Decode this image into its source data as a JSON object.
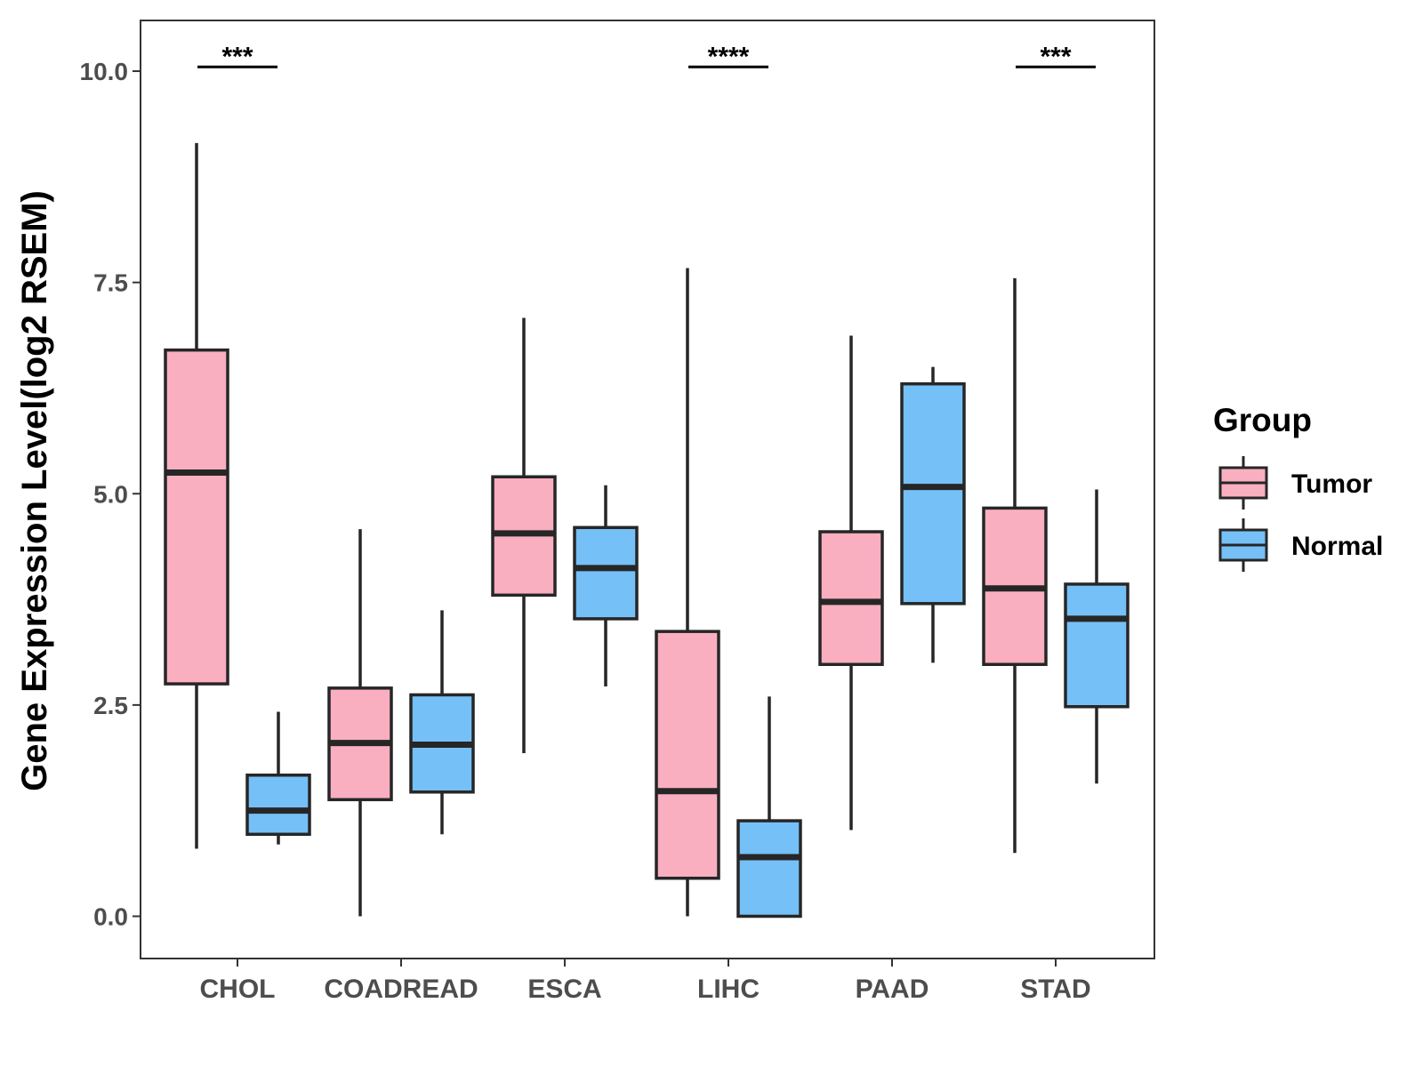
{
  "chart_data": {
    "type": "boxplot",
    "title": "",
    "xlabel": "",
    "ylabel": "Gene Expression Level(log2 RSEM)",
    "ylim": [
      -0.5,
      10.6
    ],
    "yticks": [
      0.0,
      2.5,
      5.0,
      7.5,
      10.0
    ],
    "ytick_labels": [
      "0.0",
      "2.5",
      "5.0",
      "7.5",
      "10.0"
    ],
    "categories": [
      "CHOL",
      "COADREAD",
      "ESCA",
      "LIHC",
      "PAAD",
      "STAD"
    ],
    "legend": {
      "title": "Group",
      "position": "right",
      "entries": [
        {
          "name": "Tumor",
          "color": "#f9afc0"
        },
        {
          "name": "Normal",
          "color": "#75c0f6"
        }
      ]
    },
    "series": [
      {
        "name": "Tumor",
        "color": "#f9afc0",
        "boxes": [
          {
            "category": "CHOL",
            "min": 0.8,
            "q1": 2.75,
            "median": 5.25,
            "q3": 6.7,
            "max": 9.15
          },
          {
            "category": "COADREAD",
            "min": 0.0,
            "q1": 1.38,
            "median": 2.05,
            "q3": 2.7,
            "max": 4.58
          },
          {
            "category": "ESCA",
            "min": 1.93,
            "q1": 3.8,
            "median": 4.53,
            "q3": 5.2,
            "max": 7.08
          },
          {
            "category": "LIHC",
            "min": 0.0,
            "q1": 0.45,
            "median": 1.48,
            "q3": 3.37,
            "max": 7.67
          },
          {
            "category": "PAAD",
            "min": 1.02,
            "q1": 2.98,
            "median": 3.72,
            "q3": 4.55,
            "max": 6.87
          },
          {
            "category": "STAD",
            "min": 0.75,
            "q1": 2.98,
            "median": 3.88,
            "q3": 4.83,
            "max": 7.55
          }
        ]
      },
      {
        "name": "Normal",
        "color": "#75c0f6",
        "boxes": [
          {
            "category": "CHOL",
            "min": 0.85,
            "q1": 0.97,
            "median": 1.25,
            "q3": 1.67,
            "max": 2.42
          },
          {
            "category": "COADREAD",
            "min": 0.97,
            "q1": 1.47,
            "median": 2.03,
            "q3": 2.62,
            "max": 3.62
          },
          {
            "category": "ESCA",
            "min": 2.72,
            "q1": 3.52,
            "median": 4.12,
            "q3": 4.6,
            "max": 5.1
          },
          {
            "category": "LIHC",
            "min": 0.0,
            "q1": 0.0,
            "median": 0.7,
            "q3": 1.13,
            "max": 2.6
          },
          {
            "category": "PAAD",
            "min": 3.0,
            "q1": 3.7,
            "median": 5.08,
            "q3": 6.3,
            "max": 6.5
          },
          {
            "category": "STAD",
            "min": 1.57,
            "q1": 2.48,
            "median": 3.52,
            "q3": 3.93,
            "max": 5.05
          }
        ]
      }
    ],
    "significance": [
      {
        "category": "CHOL",
        "label": "***",
        "y": 10.05
      },
      {
        "category": "LIHC",
        "label": "****",
        "y": 10.05
      },
      {
        "category": "STAD",
        "label": "***",
        "y": 10.05
      }
    ]
  }
}
